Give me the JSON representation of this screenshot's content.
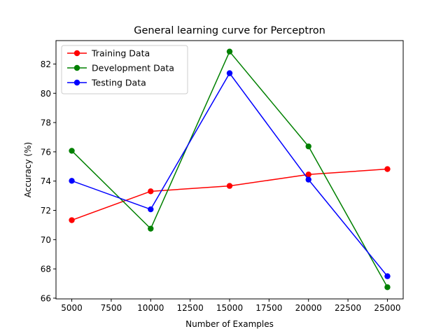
{
  "chart_data": {
    "type": "line",
    "title": "General learning curve for Perceptron",
    "xlabel": "Number of Examples",
    "ylabel": "Accuracy (%)",
    "x": [
      5000,
      10000,
      15000,
      20000,
      25000
    ],
    "xlim": [
      4000,
      26000
    ],
    "ylim": [
      65.95,
      83.6
    ],
    "xticks": [
      5000,
      7500,
      10000,
      12500,
      15000,
      17500,
      20000,
      22500,
      25000
    ],
    "yticks": [
      66,
      68,
      70,
      72,
      74,
      76,
      78,
      80,
      82
    ],
    "grid": false,
    "legend_position": "top-left",
    "series": [
      {
        "name": "Training Data",
        "color": "#ff0000",
        "values": [
          71.33,
          73.3,
          73.67,
          74.45,
          74.82
        ]
      },
      {
        "name": "Development Data",
        "color": "#008000",
        "values": [
          76.07,
          70.75,
          82.85,
          76.37,
          66.75
        ]
      },
      {
        "name": "Testing Data",
        "color": "#0000ff",
        "values": [
          74.02,
          72.07,
          81.37,
          74.1,
          67.5
        ]
      }
    ]
  }
}
